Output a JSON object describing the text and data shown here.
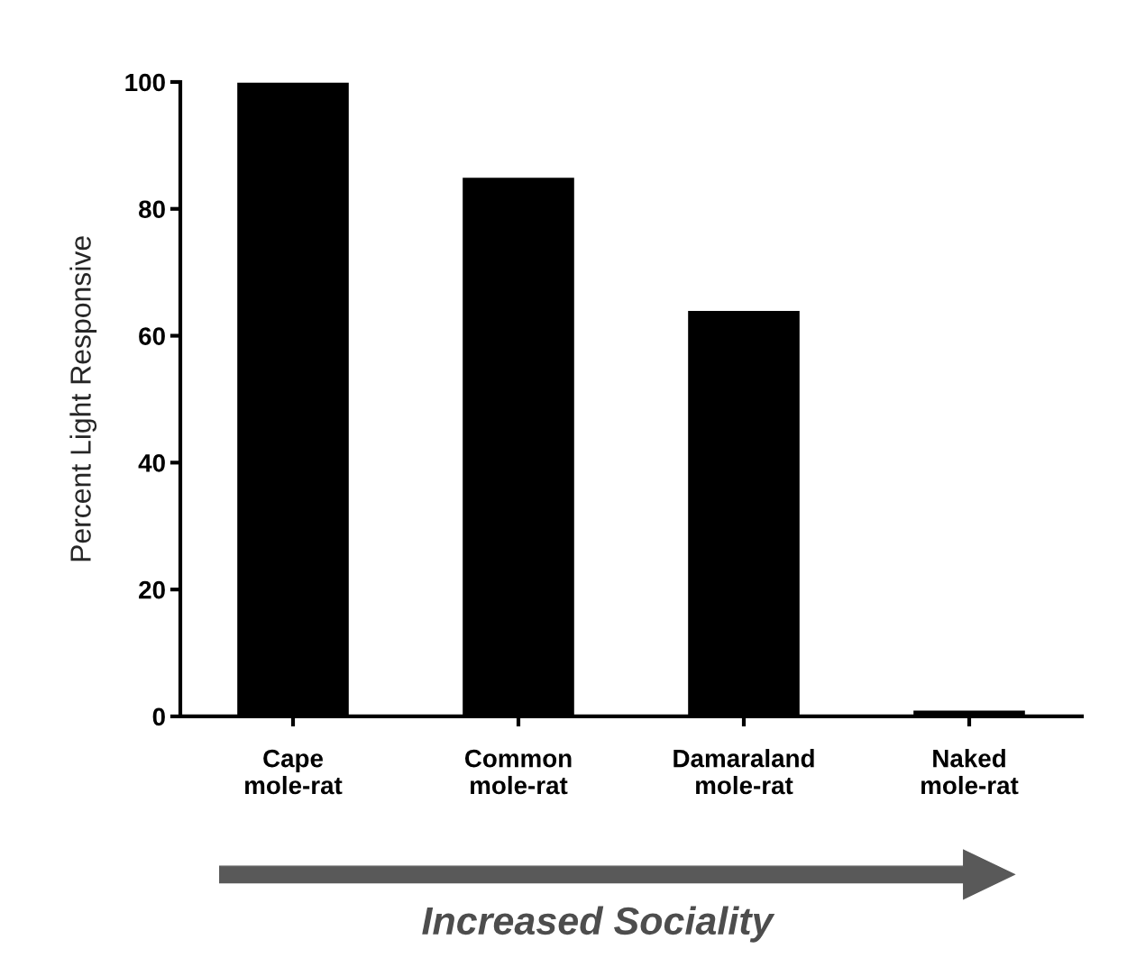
{
  "chart_data": {
    "type": "bar",
    "categories": [
      "Cape\nmole-rat",
      "Common\nmole-rat",
      "Damaraland\nmole-rat",
      "Naked\nmole-rat"
    ],
    "values": [
      100,
      85,
      64,
      1
    ],
    "color": "#000000",
    "ylabel": "Percent Light Responsive",
    "ylim": [
      0,
      100
    ],
    "yticks": [
      0,
      20,
      40,
      60,
      80,
      100
    ],
    "grid": false,
    "legend": false,
    "annotations": [
      "Increased Sociality"
    ]
  }
}
